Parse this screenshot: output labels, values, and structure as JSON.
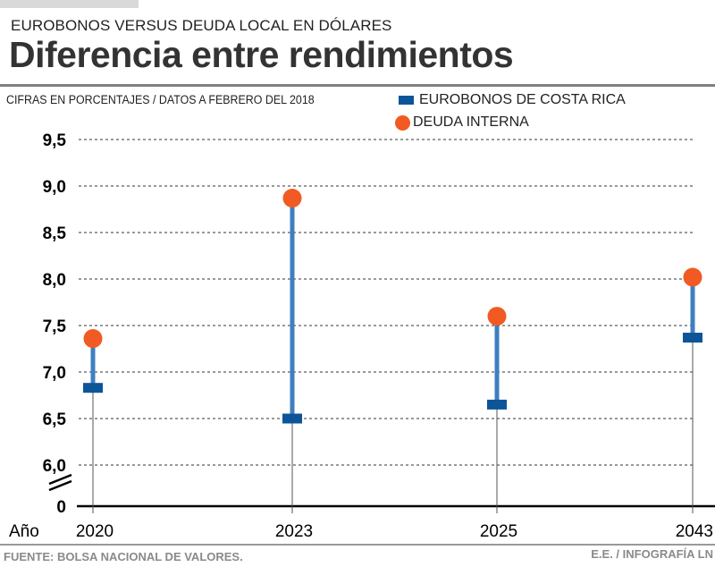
{
  "header": {
    "kicker": "EUROBONOS VERSUS DEUDA LOCAL EN DÓLARES",
    "title": "Diferencia entre rendimientos",
    "subtitle": "CIFRAS EN PORCENTAJES / DATOS A FEBRERO DEL 2018"
  },
  "footer": {
    "source": "FUENTE: BOLSA NACIONAL DE VALORES.",
    "credit": "E.E. / INFOGRAFÍA LN"
  },
  "colors": {
    "eurobonos": "#0d5599",
    "deuda_interna": "#f15a22",
    "connector": "#3f7fc0"
  },
  "chart_data": {
    "type": "scatter",
    "subtype": "dumbbell",
    "title": "Diferencia entre rendimientos",
    "xlabel": "Año",
    "ylabel": "CIFRAS EN PORCENTAJES",
    "categories": [
      "2020",
      "2023",
      "2025",
      "2043"
    ],
    "series": [
      {
        "name": "EUROBONOS DE COSTA RICA",
        "marker": "square",
        "values": [
          6.83,
          6.5,
          6.65,
          7.37
        ]
      },
      {
        "name": "DEUDA INTERNA",
        "marker": "circle",
        "values": [
          7.36,
          8.87,
          7.6,
          8.02
        ]
      }
    ],
    "yticks": [
      "0",
      "6,0",
      "6,5",
      "7,0",
      "7,5",
      "8,0",
      "8,5",
      "9,0",
      "9,5"
    ],
    "ytick_values": [
      0,
      6.0,
      6.5,
      7.0,
      7.5,
      8.0,
      8.5,
      9.0,
      9.5
    ],
    "ylim": [
      6.0,
      9.5
    ],
    "axis_break": "between 0 and 6,0",
    "grid": true,
    "legend": "top-right"
  }
}
